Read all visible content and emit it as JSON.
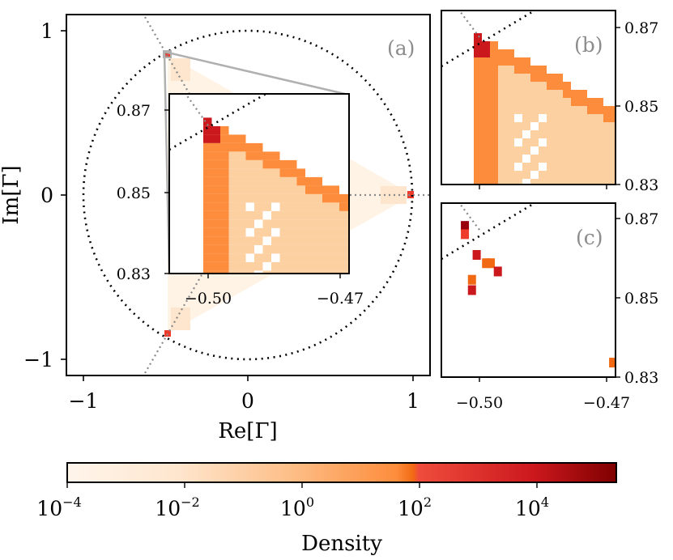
{
  "chart_data": [
    {
      "panel": "(a)",
      "type": "heatmap",
      "xlabel": "Re[Γ]",
      "ylabel": "Im[Γ]",
      "xlim": [
        -1.1,
        1.1
      ],
      "ylim": [
        -1.1,
        1.1
      ],
      "xticks": [
        "−1",
        "0",
        "1"
      ],
      "yticks": [
        "1",
        "0",
        "−1"
      ],
      "unit_circle": "dotted",
      "rays": "dotted gray, angles 0°, 120°, 240°",
      "description_cells": [
        {
          "region": "spike near (1, 0)",
          "density": 100
        },
        {
          "region": "spike near (-0.5, 0.866)",
          "density": 100
        },
        {
          "region": "spike near (-0.5, -0.866)",
          "density": 100
        },
        {
          "region": "interior triangle fill",
          "density": 0.0001
        }
      ],
      "inset": {
        "xlim": [
          -0.505,
          -0.468
        ],
        "ylim": [
          0.83,
          0.872
        ],
        "xticks": [
          "−0.50",
          "−0.47"
        ],
        "yticks": [
          "0.87",
          "0.85",
          "0.83"
        ]
      }
    },
    {
      "panel": "(b)",
      "type": "heatmap",
      "xlim": [
        -0.505,
        -0.468
      ],
      "ylim": [
        0.83,
        0.872
      ],
      "yticks": [
        "0.87",
        "0.85",
        "0.83"
      ]
    },
    {
      "panel": "(c)",
      "type": "heatmap",
      "xlim": [
        -0.505,
        -0.468
      ],
      "ylim": [
        0.83,
        0.872
      ],
      "xticks": [
        "−0.50",
        "−0.47"
      ],
      "yticks": [
        "0.87",
        "0.85",
        "0.83"
      ],
      "cells": [
        {
          "x": -0.5,
          "y": 0.8665,
          "density": 10000
        },
        {
          "x": -0.5,
          "y": 0.8645,
          "density": 100
        },
        {
          "x": -0.4975,
          "y": 0.8595,
          "density": 1000
        },
        {
          "x": -0.4955,
          "y": 0.8575,
          "density": 10
        },
        {
          "x": -0.4945,
          "y": 0.8575,
          "density": 10
        },
        {
          "x": -0.493,
          "y": 0.8555,
          "density": 1000
        },
        {
          "x": -0.4985,
          "y": 0.8535,
          "density": 10
        },
        {
          "x": -0.4985,
          "y": 0.851,
          "density": 1000
        },
        {
          "x": -0.4685,
          "y": 0.8335,
          "density": 10
        }
      ]
    }
  ],
  "colorbar": {
    "title": "Density",
    "scale": "log",
    "ticks": [
      "10",
      "10",
      "10",
      "10",
      "10"
    ],
    "exponents": [
      "−4",
      "−2",
      "0",
      "2",
      "4"
    ],
    "colors": [
      "#fff5eb",
      "#fdd0a2",
      "#fd8d3c",
      "#ef3b2c",
      "#7f0000"
    ]
  }
}
